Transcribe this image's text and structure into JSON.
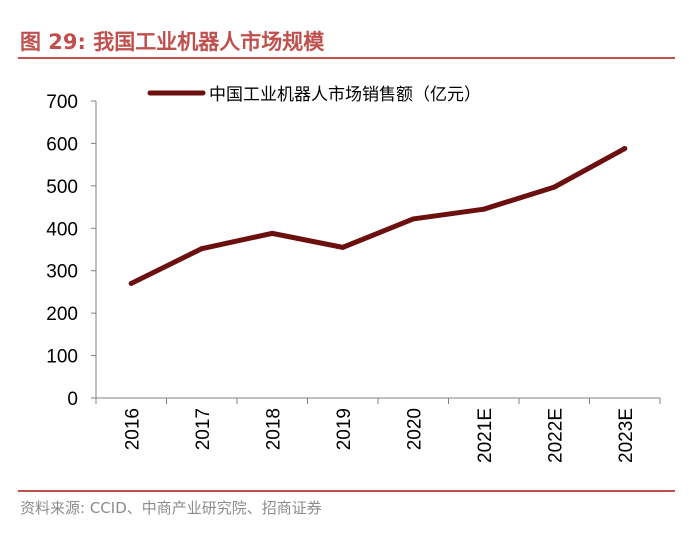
{
  "figure": {
    "title": "图 29:  我国工业机器人市场规模",
    "source": "资料来源: CCID、中商产业研究院、招商证券"
  },
  "colors": {
    "accent": "#c0504d",
    "line": "#6b0f0f",
    "axis": "#808080",
    "source_text": "#8c8c8c"
  },
  "chart_data": {
    "type": "line",
    "categories": [
      "2016",
      "2017",
      "2018",
      "2019",
      "2020",
      "2021E",
      "2022E",
      "2023E"
    ],
    "series": [
      {
        "name": "中国工业机器人市场销售额（亿元）",
        "values": [
          270,
          352,
          388,
          355,
          422,
          445,
          497,
          588
        ]
      }
    ],
    "ylim": [
      0,
      700
    ],
    "yticks": [
      0,
      100,
      200,
      300,
      400,
      500,
      600,
      700
    ],
    "grid": false,
    "legend": "top-center"
  }
}
